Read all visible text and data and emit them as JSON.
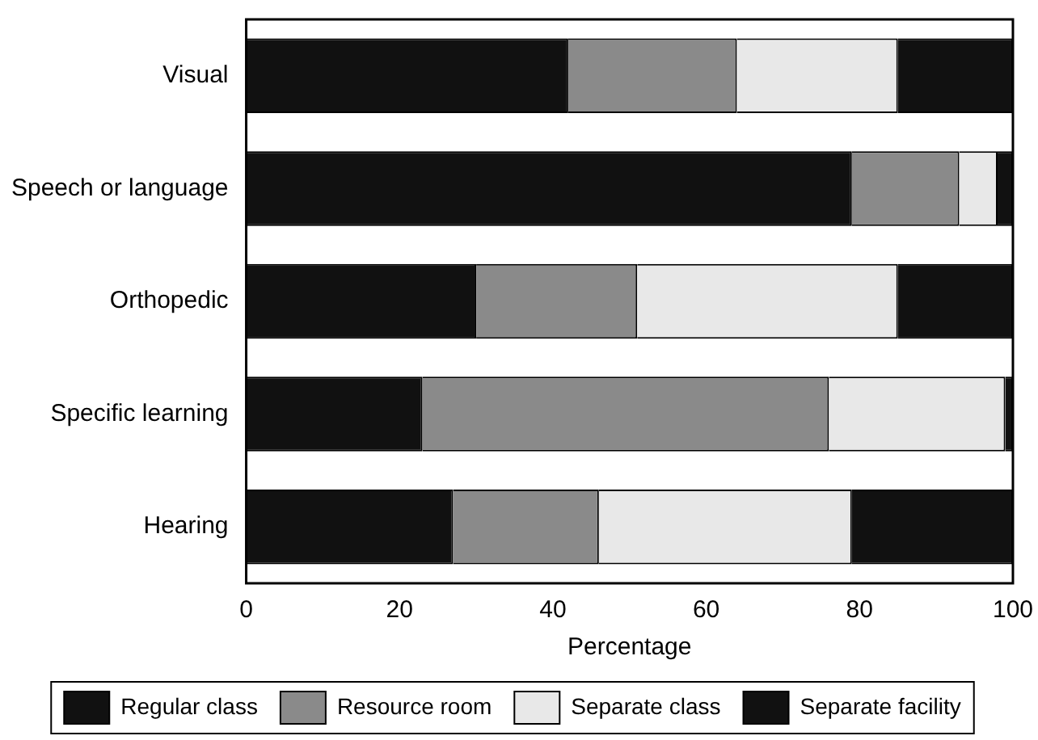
{
  "chart_data": {
    "type": "bar",
    "orientation": "horizontal",
    "stacked": true,
    "xlabel": "Percentage",
    "categories": [
      "Visual",
      "Speech or language",
      "Orthopedic",
      "Specific learning",
      "Hearing"
    ],
    "series": [
      {
        "name": "Regular class",
        "color": "#111111",
        "values": [
          42,
          79,
          30,
          23,
          27
        ]
      },
      {
        "name": "Resource room",
        "color": "#8a8a8a",
        "values": [
          22,
          14,
          21,
          53,
          19
        ]
      },
      {
        "name": "Separate class",
        "color": "#e8e8e8",
        "values": [
          21,
          5,
          34,
          23,
          33
        ]
      },
      {
        "name": "Separate facility",
        "color": "#111111",
        "values": [
          15,
          2,
          15,
          1,
          21
        ]
      }
    ],
    "xlim": [
      0,
      100
    ],
    "xticks": [
      0,
      20,
      40,
      60,
      80,
      100
    ],
    "grid": false,
    "legend": "bottom"
  }
}
